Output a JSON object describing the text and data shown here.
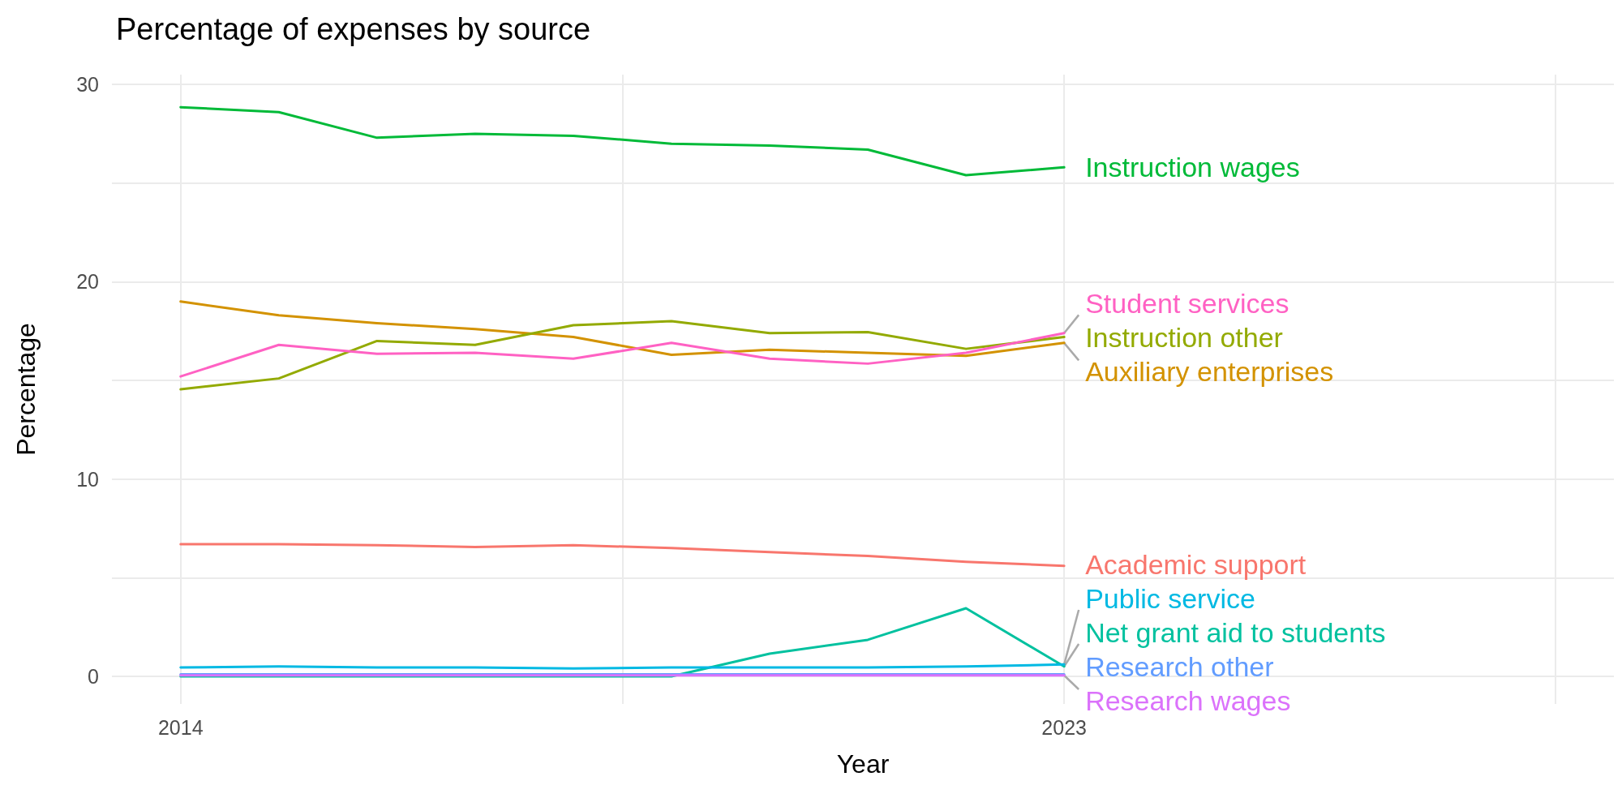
{
  "chart_data": {
    "type": "line",
    "title": "Percentage of expenses by source",
    "xlabel": "Year",
    "ylabel": "Percentage",
    "x": [
      2014,
      2015,
      2016,
      2017,
      2018,
      2019,
      2020,
      2021,
      2022,
      2023
    ],
    "xlim": [
      2013.3,
      2028.6
    ],
    "xticks": [
      2014,
      {
        "value": 2018.5,
        "label": null
      },
      2023,
      {
        "value": 2028,
        "label": null
      }
    ],
    "ylim": [
      -1.4,
      30.5
    ],
    "yticks": [
      0,
      {
        "value": 5,
        "label": null
      },
      10,
      {
        "value": 15,
        "label": null
      },
      20,
      {
        "value": 25,
        "label": null
      },
      30
    ],
    "grid": true,
    "legend": false,
    "marker": "none",
    "line_style": "solid",
    "series": [
      {
        "name": "Academic support",
        "color": "#f8766d",
        "values": [
          6.7,
          6.7,
          6.65,
          6.55,
          6.65,
          6.5,
          6.3,
          6.1,
          5.8,
          5.6
        ]
      },
      {
        "name": "Auxiliary enterprises",
        "color": "#d39200",
        "values": [
          19.0,
          18.3,
          17.9,
          17.6,
          17.2,
          16.3,
          16.55,
          16.4,
          16.25,
          16.9
        ]
      },
      {
        "name": "Instruction other",
        "color": "#93aa00",
        "values": [
          14.55,
          15.1,
          17.0,
          16.8,
          17.8,
          18.0,
          17.4,
          17.45,
          16.6,
          17.2
        ]
      },
      {
        "name": "Instruction wages",
        "color": "#00ba38",
        "values": [
          28.85,
          28.6,
          27.3,
          27.5,
          27.4,
          27.0,
          26.9,
          26.7,
          25.4,
          25.8
        ]
      },
      {
        "name": "Net grant aid to students",
        "color": "#00c19f",
        "values": [
          0,
          0,
          0,
          0,
          0,
          0,
          1.15,
          1.85,
          3.45,
          0.5
        ]
      },
      {
        "name": "Public service",
        "color": "#00b9e3",
        "values": [
          0.45,
          0.5,
          0.45,
          0.45,
          0.4,
          0.45,
          0.45,
          0.45,
          0.5,
          0.6
        ]
      },
      {
        "name": "Research other",
        "color": "#619cff",
        "values": [
          0.1,
          0.1,
          0.1,
          0.1,
          0.1,
          0.1,
          0.1,
          0.1,
          0.1,
          0.1
        ]
      },
      {
        "name": "Research wages",
        "color": "#db72fb",
        "values": [
          0.05,
          0.05,
          0.05,
          0.05,
          0.05,
          0.05,
          0.05,
          0.05,
          0.05,
          0.05
        ]
      },
      {
        "name": "Student services",
        "color": "#ff61c3",
        "values": [
          15.2,
          16.8,
          16.35,
          16.4,
          16.1,
          16.9,
          16.1,
          15.85,
          16.4,
          17.4
        ]
      }
    ]
  }
}
